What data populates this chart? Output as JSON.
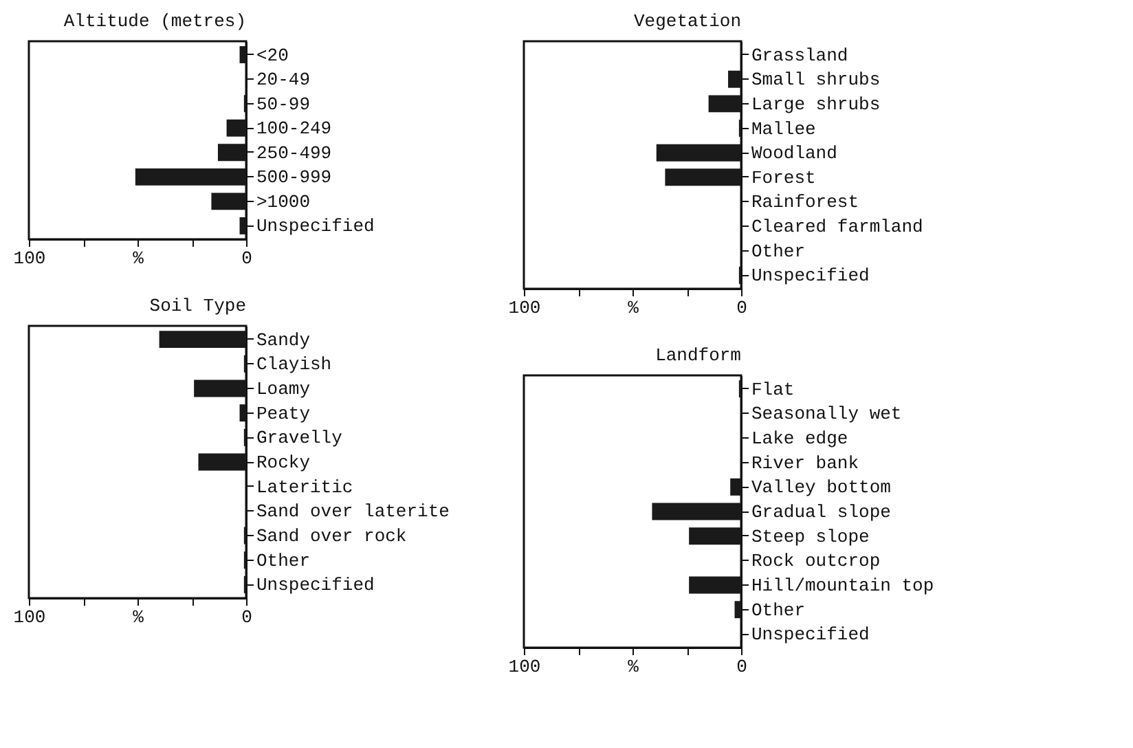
{
  "chart_data": [
    {
      "type": "bar",
      "orientation": "horizontal",
      "title": "Altitude (metres)",
      "categories": [
        "<20",
        "20-49",
        "50-99",
        "100-249",
        "250-499",
        "500-999",
        ">1000",
        "Unspecified"
      ],
      "values": [
        3,
        0,
        1,
        9,
        13,
        51,
        16,
        3
      ],
      "color": "#1a1a1a",
      "xlim": [
        100,
        0
      ],
      "xticks": [
        100,
        {
          "value": 75,
          "label": null
        },
        {
          "value": 50,
          "label": "%"
        },
        {
          "value": 25,
          "label": null
        },
        0
      ],
      "grid": false
    },
    {
      "type": "bar",
      "orientation": "horizontal",
      "title": "Vegetation",
      "categories": [
        "Grassland",
        "Small shrubs",
        "Large shrubs",
        "Mallee",
        "Woodland",
        "Forest",
        "Rainforest",
        "Cleared farmland",
        "Other",
        "Unspecified"
      ],
      "values": [
        0,
        6,
        15,
        1,
        39,
        35,
        0,
        0,
        0,
        1
      ],
      "color": "#1a1a1a",
      "xlim": [
        100,
        0
      ],
      "xticks": [
        100,
        {
          "value": 75,
          "label": null
        },
        {
          "value": 50,
          "label": "%"
        },
        {
          "value": 25,
          "label": null
        },
        0
      ],
      "grid": false
    },
    {
      "type": "bar",
      "orientation": "horizontal",
      "title": "Soil Type",
      "categories": [
        "Sandy",
        "Clayish",
        "Loamy",
        "Peaty",
        "Gravelly",
        "Rocky",
        "Lateritic",
        "Sand over laterite",
        "Sand over rock",
        "Other",
        "Unspecified"
      ],
      "values": [
        40,
        1,
        24,
        3,
        1,
        22,
        0,
        0,
        1,
        1,
        1
      ],
      "color": "#1a1a1a",
      "xlim": [
        100,
        0
      ],
      "xticks": [
        100,
        {
          "value": 75,
          "label": null
        },
        {
          "value": 50,
          "label": "%"
        },
        {
          "value": 25,
          "label": null
        },
        0
      ],
      "grid": false
    },
    {
      "type": "bar",
      "orientation": "horizontal",
      "title": "Landform",
      "categories": [
        "Flat",
        "Seasonally wet",
        "Lake edge",
        "River bank",
        "Valley bottom",
        "Gradual slope",
        "Steep slope",
        "Rock outcrop",
        "Hill/mountain top",
        "Other",
        "Unspecified"
      ],
      "values": [
        1,
        0,
        0,
        0,
        5,
        41,
        24,
        0,
        24,
        3,
        0
      ],
      "color": "#1a1a1a",
      "xlim": [
        100,
        0
      ],
      "xticks": [
        100,
        {
          "value": 75,
          "label": null
        },
        {
          "value": 50,
          "label": "%"
        },
        {
          "value": 25,
          "label": null
        },
        0
      ],
      "grid": false
    }
  ]
}
